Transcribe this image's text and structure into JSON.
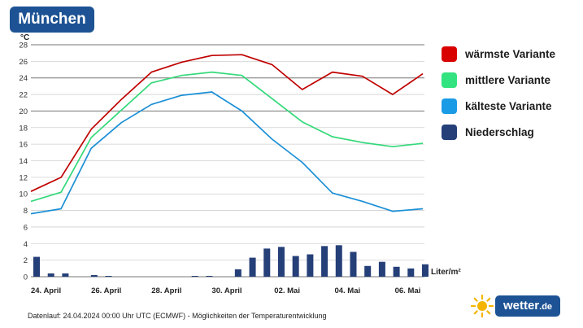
{
  "header": {
    "city": "München"
  },
  "chart_data": {
    "type": "line",
    "y_unit": "°C",
    "y_ticks": [
      0,
      2,
      4,
      6,
      8,
      10,
      12,
      14,
      16,
      18,
      20,
      22,
      24,
      26,
      28
    ],
    "ylim": [
      0,
      28
    ],
    "x_tick_labels": [
      "24. April",
      "26. April",
      "28. April",
      "30. April",
      "02. Mai",
      "04. Mai",
      "06. Mai"
    ],
    "series": [
      {
        "name": "wärmste Variante",
        "color": "#c00000",
        "values": [
          10.3,
          12.0,
          17.8,
          21.4,
          24.7,
          25.9,
          26.7,
          26.8,
          25.6,
          22.6,
          24.7,
          24.2,
          22.0,
          24.5
        ]
      },
      {
        "name": "mittlere Variante",
        "color": "#33d97a",
        "values": [
          9.1,
          10.2,
          16.8,
          20.1,
          23.4,
          24.3,
          24.7,
          24.3,
          21.5,
          18.7,
          16.9,
          16.2,
          15.7,
          16.1
        ]
      },
      {
        "name": "kälteste Variante",
        "color": "#1a8fd6",
        "values": [
          7.6,
          8.2,
          15.5,
          18.6,
          20.8,
          21.9,
          22.3,
          20.0,
          16.6,
          13.8,
          10.1,
          9.1,
          7.9,
          8.2
        ]
      }
    ],
    "precipitation": {
      "name": "Niederschlag",
      "unit": "Liter/m²",
      "color": "#253f78",
      "values": [
        2.4,
        0.4,
        0.4,
        0.0,
        0.2,
        0.1,
        0.0,
        0.0,
        0.0,
        0.0,
        0.0,
        0.1,
        0.1,
        0.0,
        0.9,
        2.3,
        3.4,
        3.6,
        2.5,
        2.7,
        3.7,
        3.8,
        3.0,
        1.3,
        1.8,
        1.2,
        1.0,
        1.5
      ]
    },
    "grid": true,
    "legend": "right"
  },
  "footer": {
    "note": "Datenlauf: 24.04.2024 00:00 Uhr UTC (ECMWF) - Möglichkeiten der Temperaturentwicklung"
  },
  "brand": {
    "name": "wetter",
    "suffix": ".de"
  }
}
